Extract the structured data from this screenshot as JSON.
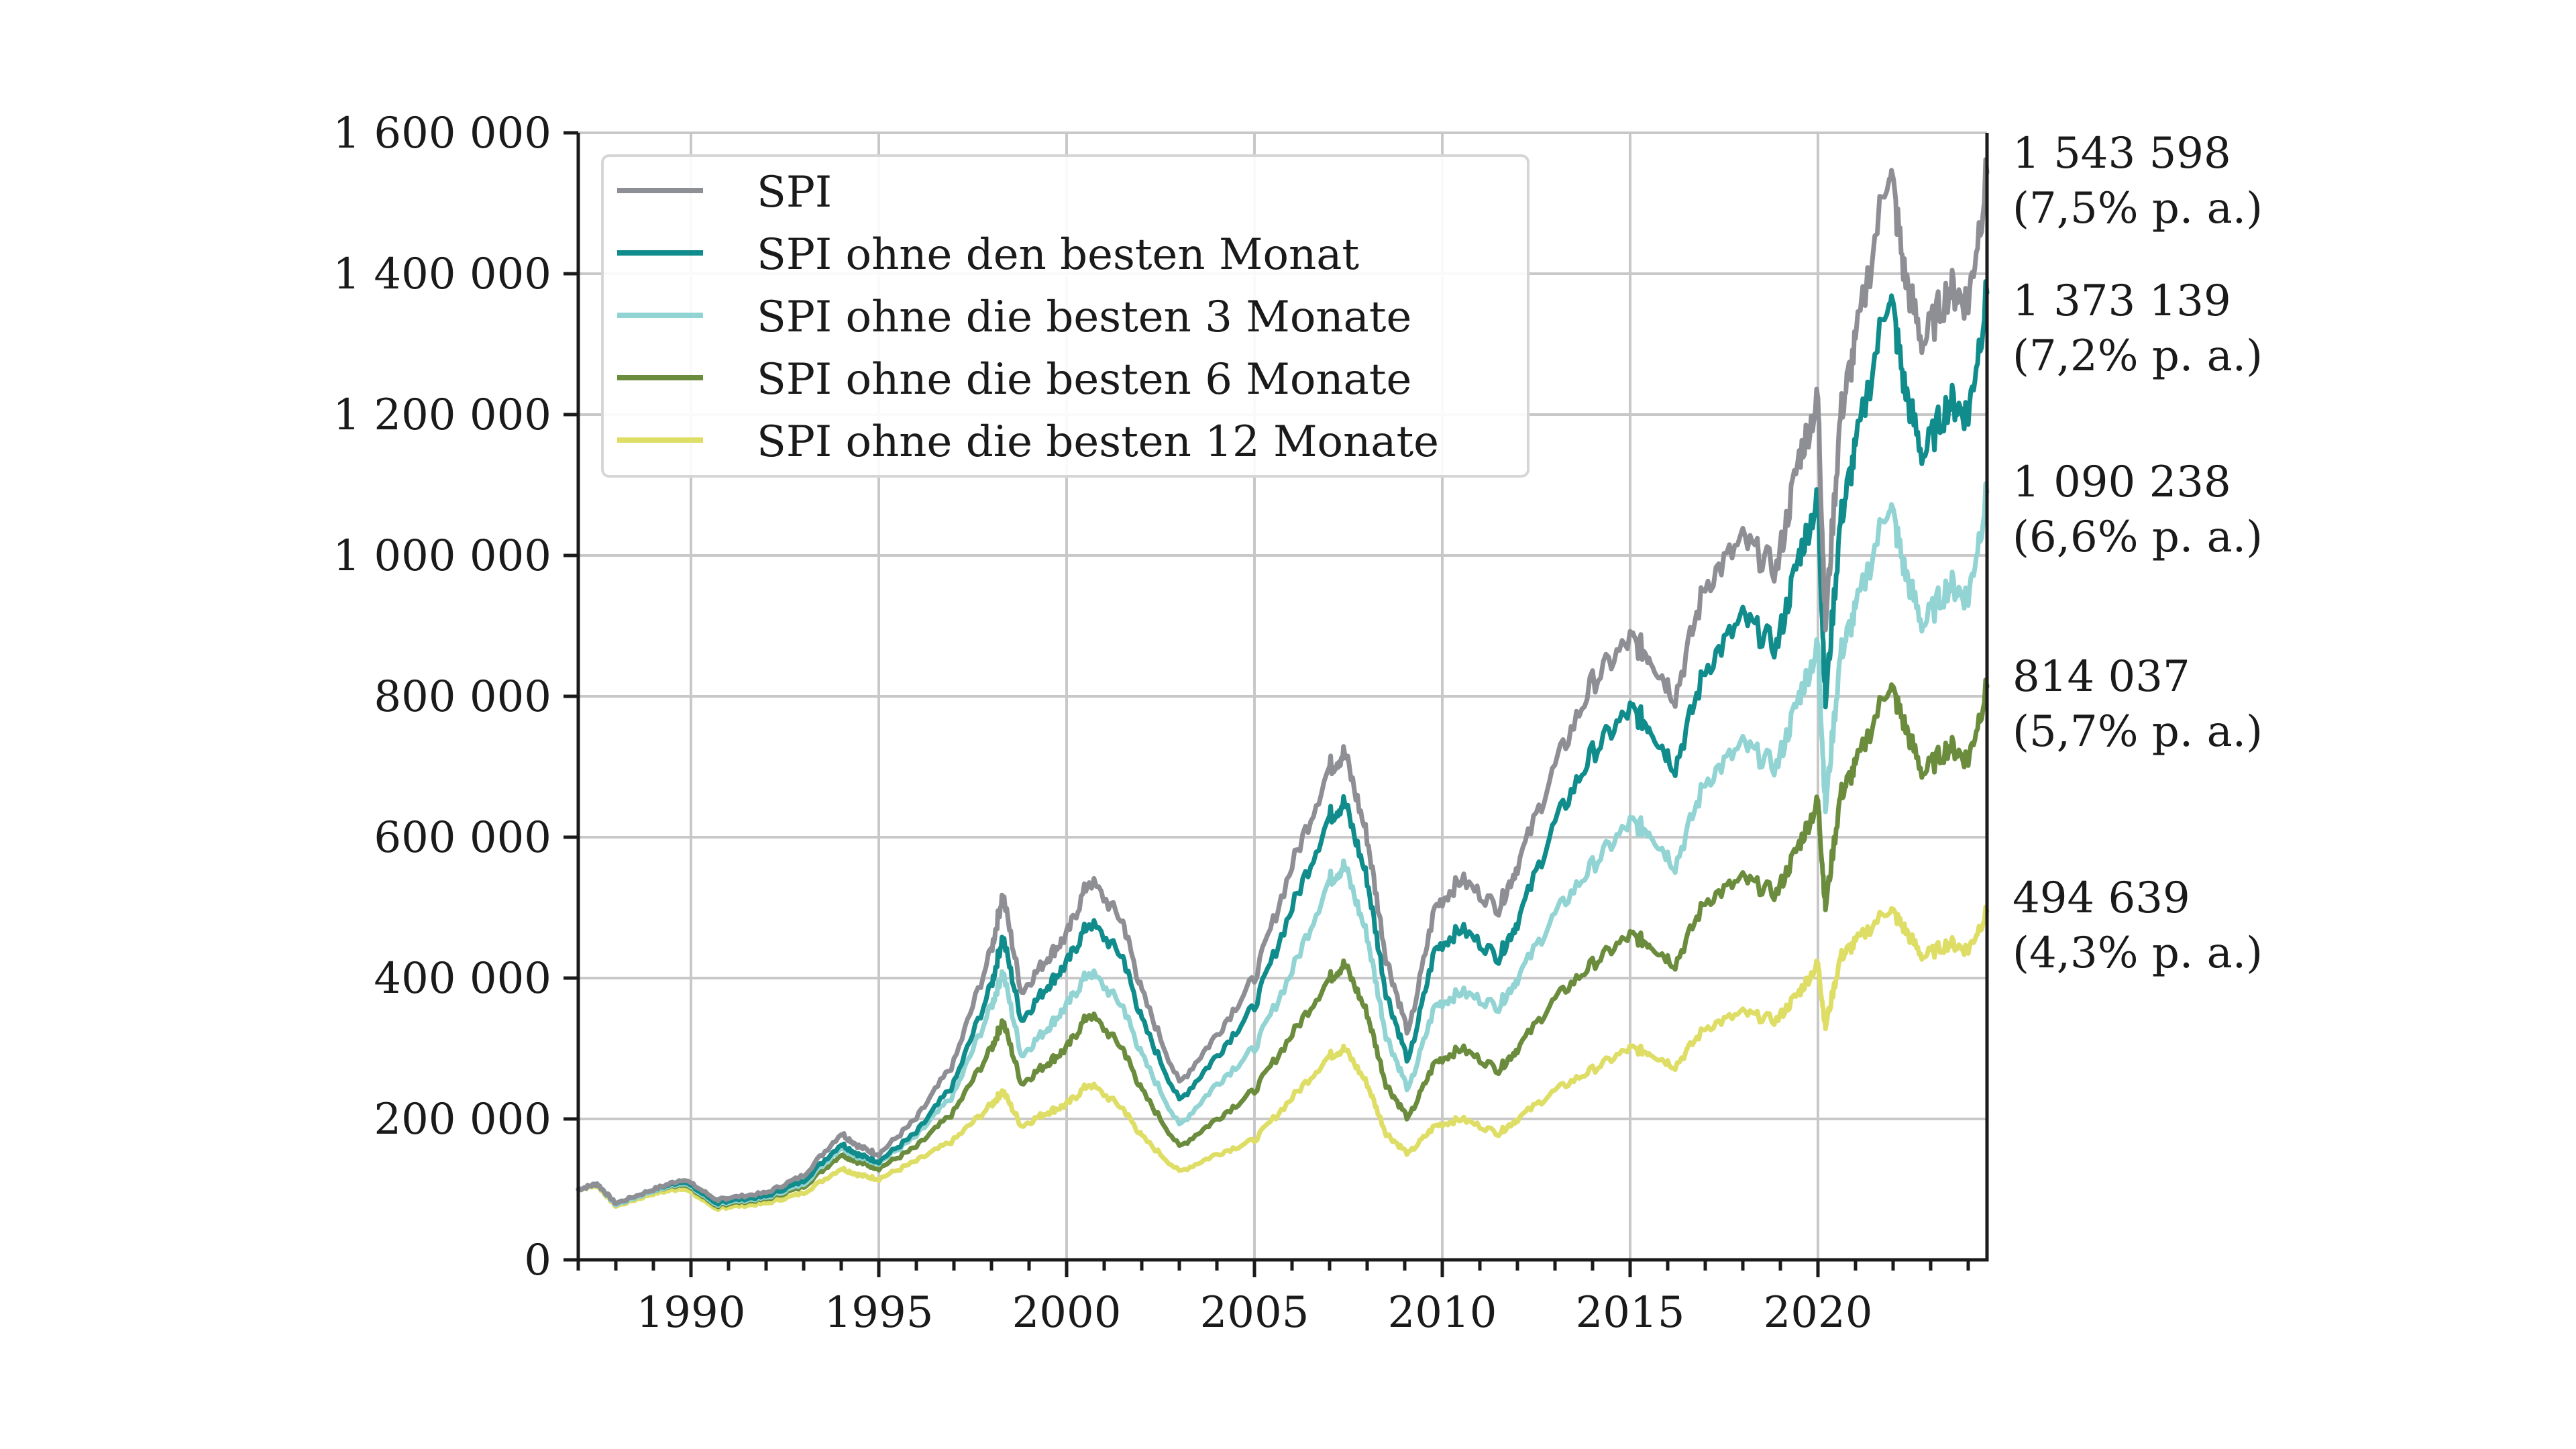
{
  "chart_data": {
    "type": "line",
    "title": "",
    "xlabel": "",
    "ylabel": "",
    "xlim": [
      1987.0,
      2024.5
    ],
    "ylim": [
      0,
      1600000
    ],
    "grid": true,
    "legend_position": "top-left",
    "x_ticks": [
      1990,
      1995,
      2000,
      2005,
      2010,
      2015,
      2020
    ],
    "x_tick_labels": [
      "1990",
      "1995",
      "2000",
      "2005",
      "2010",
      "2015",
      "2020"
    ],
    "y_ticks": [
      0,
      200000,
      400000,
      600000,
      800000,
      1000000,
      1200000,
      1400000,
      1600000
    ],
    "y_tick_labels": [
      "0",
      "200 000",
      "400 000",
      "600 000",
      "800 000",
      "1 000 000",
      "1 200 000",
      "1 400 000",
      "1 600 000"
    ],
    "x": [
      1987.0,
      1987.5,
      1988.0,
      1989.0,
      1989.8,
      1990.7,
      1991.0,
      1992.0,
      1993.0,
      1994.0,
      1994.5,
      1995.0,
      1996.0,
      1997.0,
      1998.0,
      1998.3,
      1998.8,
      1999.5,
      2000.0,
      2000.6,
      2001.5,
      2002.0,
      2003.0,
      2004.0,
      2005.0,
      2006.0,
      2007.0,
      2007.4,
      2008.0,
      2008.5,
      2009.1,
      2009.8,
      2010.5,
      2011.5,
      2012.0,
      2013.0,
      2014.0,
      2015.0,
      2015.5,
      2016.2,
      2017.0,
      2018.0,
      2018.9,
      2019.5,
      2020.0,
      2020.2,
      2020.6,
      2021.0,
      2021.9,
      2022.3,
      2022.8,
      2023.5,
      2024.0,
      2024.5
    ],
    "series": [
      {
        "name": "SPI",
        "color": "#8e8e95",
        "end_value": "1 543 598",
        "end_rate": "(7,5% p. a.)",
        "values": [
          100000,
          108000,
          80000,
          100000,
          115000,
          85000,
          88000,
          95000,
          120000,
          180000,
          160000,
          150000,
          200000,
          280000,
          440000,
          520000,
          380000,
          430000,
          460000,
          540000,
          480000,
          380000,
          250000,
          320000,
          400000,
          560000,
          700000,
          720000,
          600000,
          430000,
          320000,
          500000,
          540000,
          500000,
          560000,
          700000,
          820000,
          880000,
          860000,
          800000,
          960000,
          1020000,
          980000,
          1140000,
          1220000,
          900000,
          1200000,
          1300000,
          1560000,
          1400000,
          1300000,
          1380000,
          1360000,
          1543598
        ]
      },
      {
        "name": "SPI ohne den besten Monat",
        "color": "#108c8c",
        "end_value": "1 373 139",
        "end_rate": "(7,2% p. a.)",
        "values": [
          100000,
          108000,
          80000,
          100000,
          112000,
          80000,
          84000,
          90000,
          112000,
          165000,
          148000,
          140000,
          180000,
          250000,
          390000,
          460000,
          340000,
          390000,
          420000,
          480000,
          430000,
          340000,
          225000,
          290000,
          360000,
          500000,
          630000,
          650000,
          540000,
          380000,
          280000,
          440000,
          470000,
          430000,
          480000,
          620000,
          720000,
          780000,
          760000,
          700000,
          840000,
          910000,
          870000,
          1000000,
          1080000,
          790000,
          1050000,
          1150000,
          1380000,
          1240000,
          1140000,
          1220000,
          1200000,
          1373139
        ]
      },
      {
        "name": "SPI ohne die besten 3 Monate",
        "color": "#92d3d3",
        "end_value": "1 090 238",
        "end_rate": "(6,6% p. a.)",
        "values": [
          100000,
          108000,
          78000,
          98000,
          110000,
          78000,
          82000,
          88000,
          108000,
          160000,
          145000,
          138000,
          175000,
          235000,
          360000,
          410000,
          290000,
          330000,
          360000,
          410000,
          360000,
          290000,
          190000,
          250000,
          300000,
          410000,
          540000,
          560000,
          460000,
          320000,
          240000,
          360000,
          380000,
          360000,
          400000,
          490000,
          560000,
          620000,
          610000,
          560000,
          680000,
          730000,
          700000,
          800000,
          870000,
          640000,
          860000,
          920000,
          1080000,
          980000,
          900000,
          960000,
          940000,
          1090238
        ]
      },
      {
        "name": "SPI ohne die besten 6 Monate",
        "color": "#6a8c3c",
        "end_value": "814 037",
        "end_rate": "(5,7% p. a.)",
        "values": [
          100000,
          108000,
          78000,
          98000,
          108000,
          76000,
          80000,
          86000,
          104000,
          150000,
          138000,
          130000,
          160000,
          210000,
          300000,
          340000,
          250000,
          280000,
          300000,
          350000,
          300000,
          240000,
          160000,
          200000,
          240000,
          320000,
          400000,
          420000,
          350000,
          250000,
          200000,
          280000,
          300000,
          270000,
          300000,
          370000,
          420000,
          460000,
          450000,
          420000,
          510000,
          540000,
          520000,
          590000,
          650000,
          500000,
          660000,
          700000,
          820000,
          760000,
          690000,
          730000,
          710000,
          814037
        ]
      },
      {
        "name": "SPI ohne die besten 12 Monate",
        "color": "#dede66",
        "end_value": "494 639",
        "end_rate": "(4,3% p. a.)",
        "values": [
          100000,
          106000,
          76000,
          94000,
          102000,
          72000,
          75000,
          80000,
          95000,
          130000,
          120000,
          115000,
          140000,
          170000,
          220000,
          240000,
          190000,
          210000,
          220000,
          250000,
          215000,
          175000,
          125000,
          150000,
          170000,
          230000,
          290000,
          300000,
          250000,
          180000,
          150000,
          190000,
          200000,
          180000,
          200000,
          240000,
          270000,
          300000,
          295000,
          275000,
          330000,
          350000,
          340000,
          380000,
          420000,
          330000,
          430000,
          450000,
          500000,
          470000,
          430000,
          450000,
          440000,
          494639
        ]
      }
    ]
  }
}
